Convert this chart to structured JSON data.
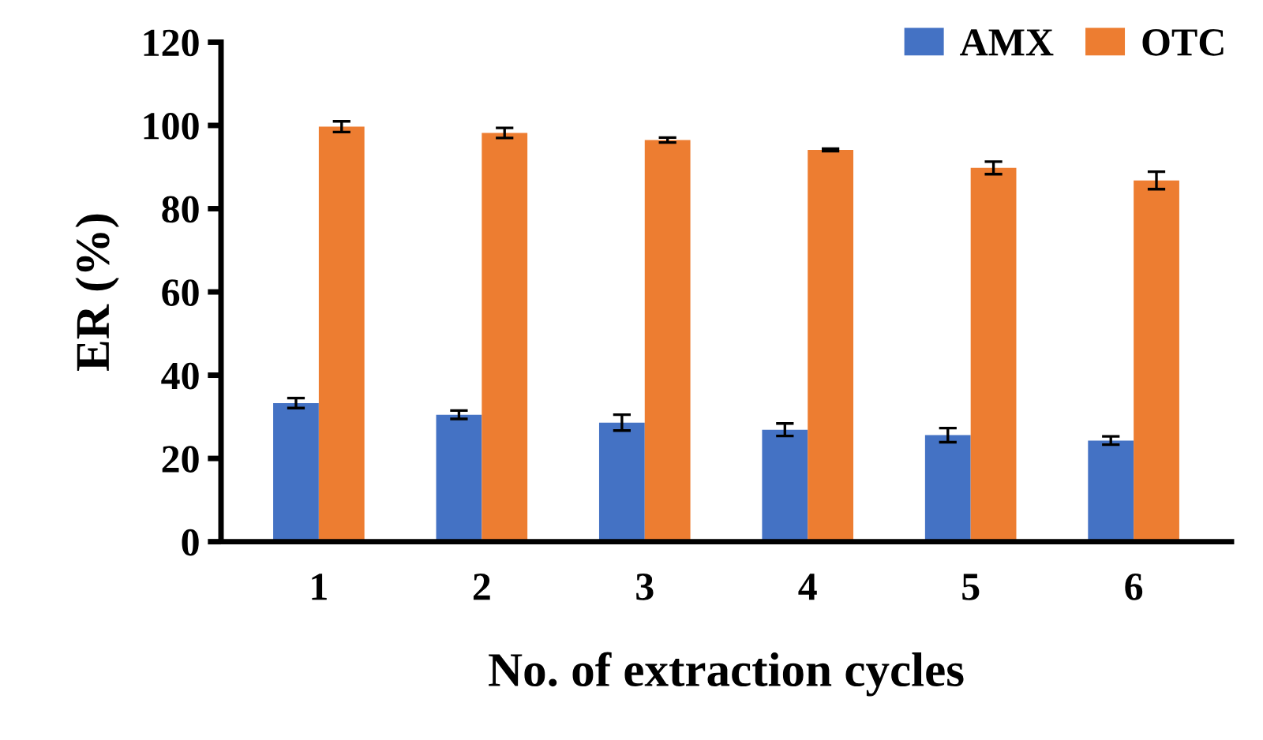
{
  "chart_data": {
    "type": "bar",
    "xlabel": "No. of extraction cycles",
    "ylabel": "ER (%)",
    "categories": [
      "1",
      "2",
      "3",
      "4",
      "5",
      "6"
    ],
    "series": [
      {
        "name": "AMX",
        "color": "#4472c4",
        "values": [
          33.3,
          30.5,
          28.6,
          26.9,
          25.6,
          24.3
        ],
        "errors": [
          1.2,
          1.0,
          1.9,
          1.5,
          1.7,
          1.0
        ]
      },
      {
        "name": "OTC",
        "color": "#ed7d31",
        "values": [
          99.7,
          98.2,
          96.5,
          94.1,
          89.8,
          86.8
        ],
        "errors": [
          1.3,
          1.2,
          0.6,
          0.3,
          1.5,
          2.1
        ]
      }
    ],
    "ylim": [
      0,
      120
    ],
    "yticks": [
      0,
      20,
      40,
      60,
      80,
      100,
      120
    ],
    "grid": false,
    "legend": "top right"
  }
}
